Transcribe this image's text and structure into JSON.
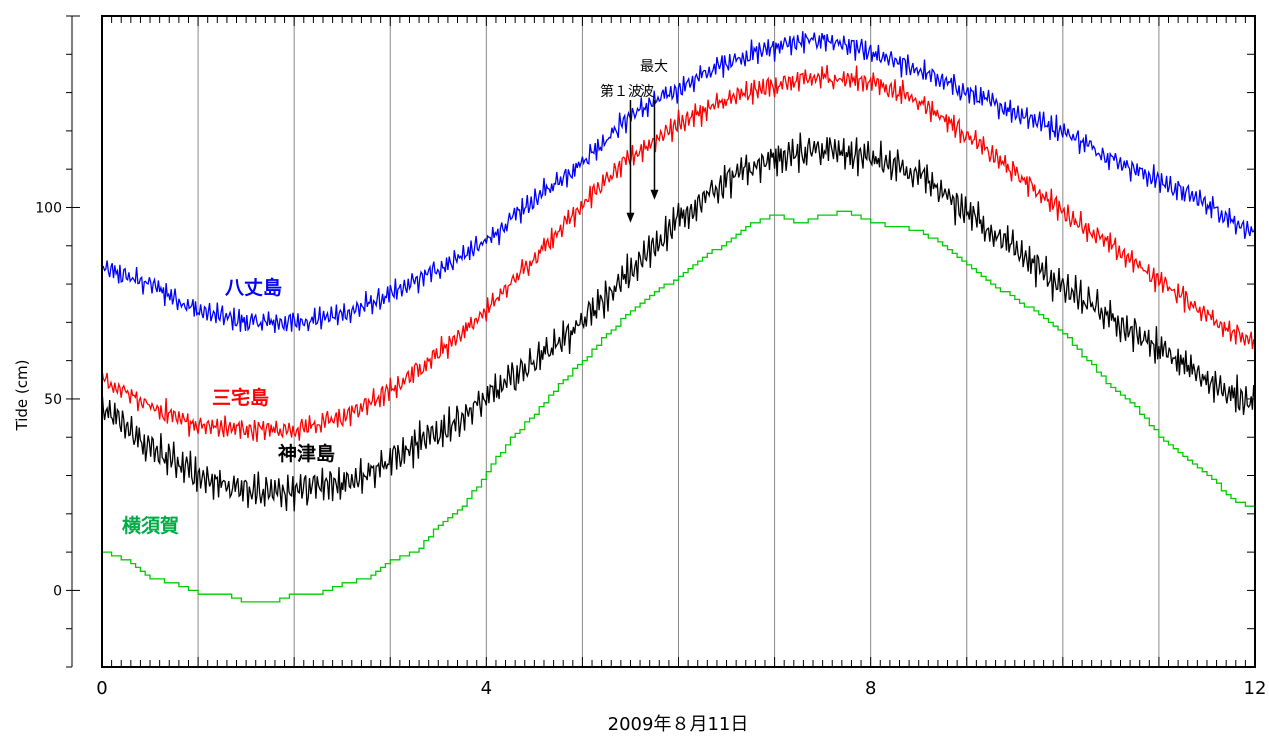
{
  "chart_data": {
    "type": "line",
    "xlabel": "2009年８月11日",
    "ylabel": "Tide (cm)",
    "xlim": [
      0,
      12
    ],
    "ylim": [
      -20,
      150
    ],
    "xticks": [
      0,
      4,
      8,
      12
    ],
    "xtick_labels": [
      "0",
      "4",
      "8",
      "12"
    ],
    "yticks": [
      0,
      50,
      100
    ],
    "ytick_labels": [
      "0",
      "50",
      "100"
    ],
    "vertical_gridlines": [
      1,
      2,
      3,
      4,
      5,
      6,
      7,
      8,
      9,
      10,
      11
    ],
    "grid": "vertical only",
    "series": [
      {
        "name": "八丈島",
        "color": "#0000ff",
        "noise_amplitude": 2.5,
        "x": [
          0,
          0.5,
          1,
          1.5,
          2,
          2.5,
          3,
          3.5,
          4,
          4.5,
          5,
          5.5,
          6,
          6.5,
          7,
          7.5,
          7.8,
          8,
          8.5,
          9,
          9.5,
          10,
          10.5,
          11,
          11.5,
          12
        ],
        "values": [
          84,
          80,
          73,
          70,
          70,
          72,
          77,
          84,
          91,
          102,
          112,
          124,
          131,
          138,
          142,
          144,
          142,
          140,
          136,
          130,
          125,
          120,
          113,
          107,
          101,
          93
        ]
      },
      {
        "name": "三宅島",
        "color": "#ff0000",
        "noise_amplitude": 2.5,
        "x": [
          0,
          0.5,
          1,
          1.5,
          2,
          2.5,
          3,
          3.5,
          4,
          4.5,
          5,
          5.5,
          6,
          6.5,
          7,
          7.5,
          8,
          8.5,
          9,
          9.5,
          10,
          10.5,
          11,
          11.5,
          12
        ],
        "values": [
          55,
          48,
          43,
          42,
          42,
          45,
          52,
          62,
          73,
          87,
          101,
          113,
          122,
          128,
          132,
          134,
          133,
          128,
          119,
          109,
          99,
          90,
          81,
          72,
          64
        ]
      },
      {
        "name": "神津島",
        "color": "#000000",
        "noise_amplitude": 4,
        "x": [
          0,
          0.5,
          1,
          1.5,
          2,
          2.5,
          3,
          3.5,
          4,
          4.5,
          5,
          5.5,
          6,
          6.5,
          7,
          7.5,
          8,
          8.5,
          9,
          9.5,
          10,
          10.5,
          11,
          11.5,
          12
        ],
        "values": [
          48,
          37,
          30,
          26,
          26,
          28,
          34,
          41,
          50,
          60,
          70,
          83,
          97,
          107,
          113,
          115,
          113,
          108,
          99,
          89,
          79,
          71,
          63,
          55,
          48
        ]
      },
      {
        "name": "横須賀",
        "color": "#00cc00",
        "noise_amplitude": 0,
        "x": [
          0,
          0.25,
          0.5,
          0.75,
          1,
          1.25,
          1.5,
          1.75,
          2,
          2.25,
          2.5,
          2.75,
          3,
          3.25,
          3.5,
          3.75,
          4,
          4.25,
          4.5,
          4.75,
          5,
          5.25,
          5.5,
          5.75,
          6,
          6.25,
          6.5,
          6.75,
          7,
          7.25,
          7.5,
          7.75,
          8,
          8.25,
          8.5,
          8.75,
          9,
          9.25,
          9.5,
          9.75,
          10,
          10.25,
          10.5,
          10.75,
          11,
          11.25,
          11.5,
          11.75,
          12
        ],
        "values": [
          10,
          8,
          3,
          2,
          -1,
          -1,
          -3,
          -3,
          -1,
          -1,
          2,
          3,
          8,
          10,
          17,
          22,
          31,
          40,
          46,
          54,
          60,
          67,
          73,
          78,
          82,
          87,
          91,
          96,
          98,
          96,
          98,
          99,
          96,
          95,
          94,
          90,
          85,
          80,
          76,
          72,
          67,
          60,
          53,
          48,
          40,
          35,
          30,
          24,
          21
        ]
      }
    ],
    "series_labels": [
      "八丈島",
      "三宅島",
      "神津島",
      "横須賀"
    ],
    "annotations": [
      {
        "text_lines": [
          "第１波"
        ],
        "x": 5.5,
        "y_arrow_tip": 96
      },
      {
        "text_lines": [
          "最大",
          "波"
        ],
        "x": 5.75,
        "y_arrow_tip": 102
      }
    ]
  }
}
